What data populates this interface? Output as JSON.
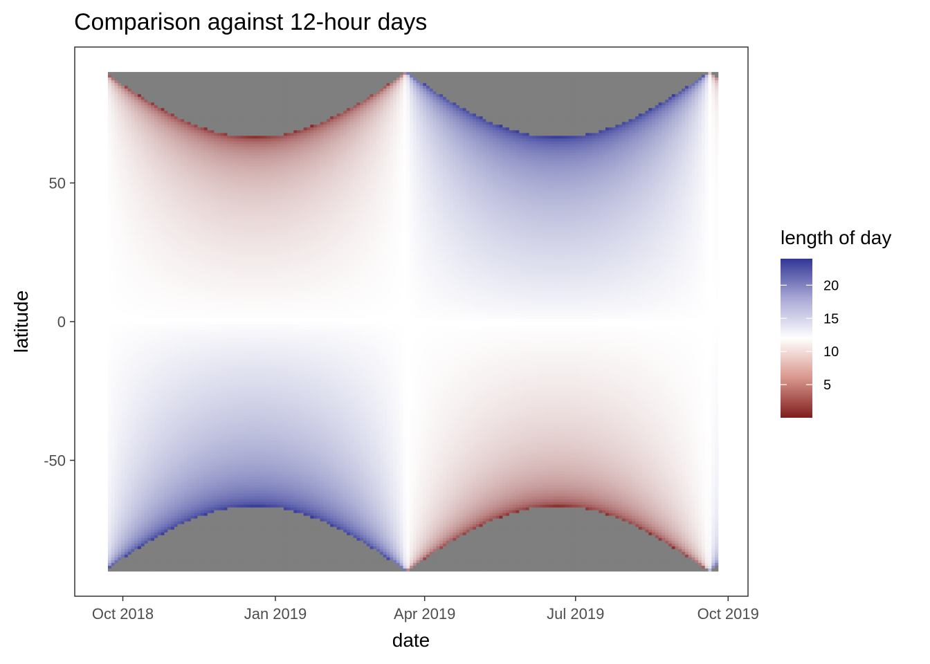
{
  "chart_data": {
    "type": "heatmap",
    "title": "Comparison against 12-hour days",
    "xlabel": "date",
    "ylabel": "latitude",
    "x_ticks": [
      {
        "date": "2018-10-01",
        "label": "Oct 2018"
      },
      {
        "date": "2019-01-01",
        "label": "Jan 2019"
      },
      {
        "date": "2019-04-01",
        "label": "Apr 2019"
      },
      {
        "date": "2019-07-01",
        "label": "Jul 2019"
      },
      {
        "date": "2019-10-01",
        "label": "Oct 2019"
      }
    ],
    "y_ticks": [
      {
        "value": 50,
        "label": "50"
      },
      {
        "value": 0,
        "label": "0"
      },
      {
        "value": -50,
        "label": "-50"
      }
    ],
    "xlim": [
      "2018-09-22",
      "2019-09-23"
    ],
    "ylim": [
      -90,
      90
    ],
    "fill_variable": "length of day",
    "fill_unit": "hours",
    "fill_range": [
      0,
      24
    ],
    "fill_midpoint": 12,
    "color_low": "#7f1d1d",
    "color_mid": "#ffffff",
    "color_high": "#313695",
    "na_color": "#7f7f7f",
    "legend": {
      "title": "length of day",
      "position": "right",
      "ticks": [
        {
          "value": 5,
          "label": "5"
        },
        {
          "value": 10,
          "label": "10"
        },
        {
          "value": 15,
          "label": "15"
        },
        {
          "value": 20,
          "label": "20"
        }
      ]
    },
    "grid": false
  }
}
